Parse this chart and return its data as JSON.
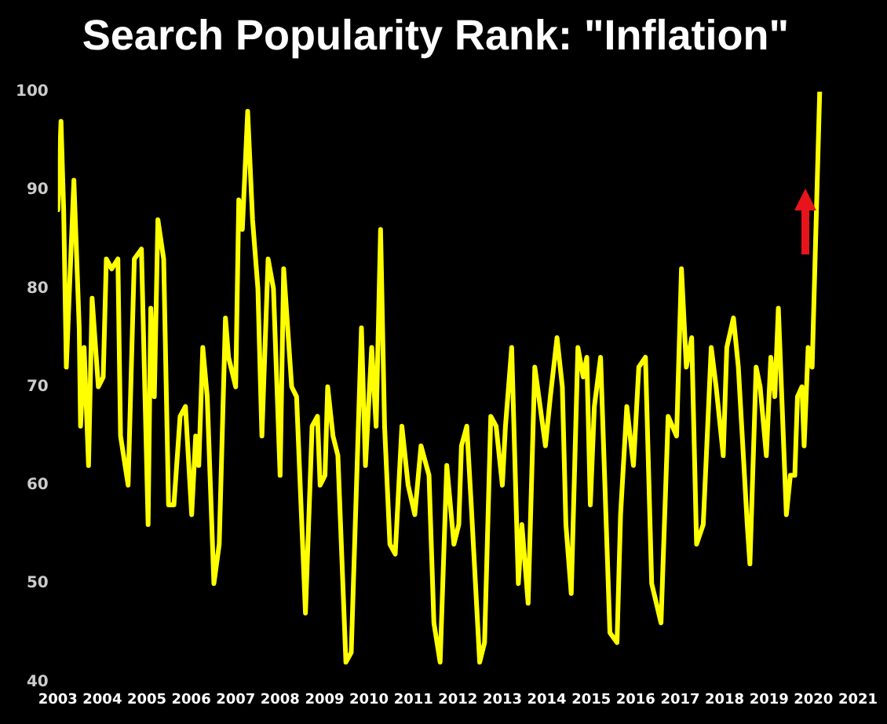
{
  "chart_data": {
    "type": "line",
    "title": "Search Popularity Rank: \"Inflation\"",
    "x": [
      2003.0,
      2003.07,
      2003.13,
      2003.19,
      2003.36,
      2003.48,
      2003.51,
      2003.59,
      2003.69,
      2003.77,
      2003.91,
      2004.02,
      2004.09,
      2004.21,
      2004.35,
      2004.41,
      2004.58,
      2004.72,
      2004.88,
      2005.03,
      2005.09,
      2005.17,
      2005.25,
      2005.38,
      2005.49,
      2005.61,
      2005.75,
      2005.87,
      2006.01,
      2006.1,
      2006.17,
      2006.26,
      2006.36,
      2006.51,
      2006.63,
      2006.77,
      2006.84,
      2007.0,
      2007.07,
      2007.15,
      2007.27,
      2007.38,
      2007.5,
      2007.59,
      2007.73,
      2007.85,
      2008.0,
      2008.08,
      2008.26,
      2008.37,
      2008.57,
      2008.72,
      2008.84,
      2008.9,
      2009.01,
      2009.07,
      2009.19,
      2009.3,
      2009.48,
      2009.6,
      2009.83,
      2009.92,
      2010.06,
      2010.16,
      2010.26,
      2010.35,
      2010.47,
      2010.59,
      2010.74,
      2010.88,
      2011.03,
      2011.17,
      2011.35,
      2011.46,
      2011.6,
      2011.75,
      2011.91,
      2012.02,
      2012.08,
      2012.2,
      2012.3,
      2012.49,
      2012.6,
      2012.74,
      2012.86,
      2013.0,
      2013.07,
      2013.21,
      2013.36,
      2013.44,
      2013.58,
      2013.73,
      2013.85,
      2013.97,
      2014.08,
      2014.23,
      2014.35,
      2014.43,
      2014.55,
      2014.7,
      2014.82,
      2014.9,
      2014.98,
      2015.07,
      2015.21,
      2015.42,
      2015.58,
      2015.66,
      2015.8,
      2015.95,
      2016.07,
      2016.22,
      2016.36,
      2016.57,
      2016.73,
      2016.92,
      2017.03,
      2017.14,
      2017.26,
      2017.37,
      2017.52,
      2017.7,
      2017.81,
      2017.97,
      2018.05,
      2018.2,
      2018.31,
      2018.51,
      2018.57,
      2018.71,
      2018.8,
      2018.94,
      2019.04,
      2019.13,
      2019.21,
      2019.39,
      2019.48,
      2019.58,
      2019.64,
      2019.74,
      2019.79,
      2019.88,
      2019.97,
      2020.14
    ],
    "series": [
      {
        "color": "#ffff00",
        "values": [
          88,
          97,
          88,
          72,
          91,
          76,
          66,
          74,
          62,
          79,
          70,
          71,
          83,
          82,
          83,
          65,
          60,
          83,
          84,
          56,
          78,
          69,
          87,
          83,
          58,
          58,
          67,
          68,
          57,
          65,
          62,
          74,
          69,
          50,
          54,
          77,
          73,
          70,
          89,
          86,
          98,
          87,
          80,
          65,
          83,
          80,
          61,
          82,
          70,
          69,
          47,
          66,
          67,
          60,
          61,
          70,
          65,
          63,
          42,
          43,
          76,
          62,
          74,
          66,
          86,
          66,
          54,
          53,
          66,
          60,
          57,
          64,
          61,
          46,
          42,
          62,
          54,
          56,
          64,
          66,
          58,
          42,
          44,
          67,
          66,
          60,
          66,
          74,
          50,
          56,
          48,
          72,
          68,
          64,
          69,
          75,
          70,
          56,
          49,
          74,
          71,
          73,
          58,
          68,
          73,
          45,
          44,
          57,
          68,
          62,
          72,
          73,
          50,
          46,
          67,
          65,
          82,
          72,
          75,
          54,
          56,
          74,
          70,
          63,
          74,
          77,
          72,
          56,
          52,
          72,
          70,
          63,
          73,
          69,
          78,
          57,
          61,
          61,
          69,
          70,
          64,
          74,
          72,
          100
        ]
      }
    ],
    "xlim": [
      2003,
      2021
    ],
    "xticks": [
      2003,
      2004,
      2005,
      2006,
      2007,
      2008,
      2009,
      2010,
      2011,
      2012,
      2013,
      2014,
      2015,
      2016,
      2017,
      2018,
      2019,
      2020,
      2021
    ],
    "ylim": [
      40,
      100
    ],
    "yticks": [
      40,
      50,
      60,
      70,
      80,
      90,
      100
    ],
    "grid": false,
    "legend": false,
    "marker": "none"
  }
}
